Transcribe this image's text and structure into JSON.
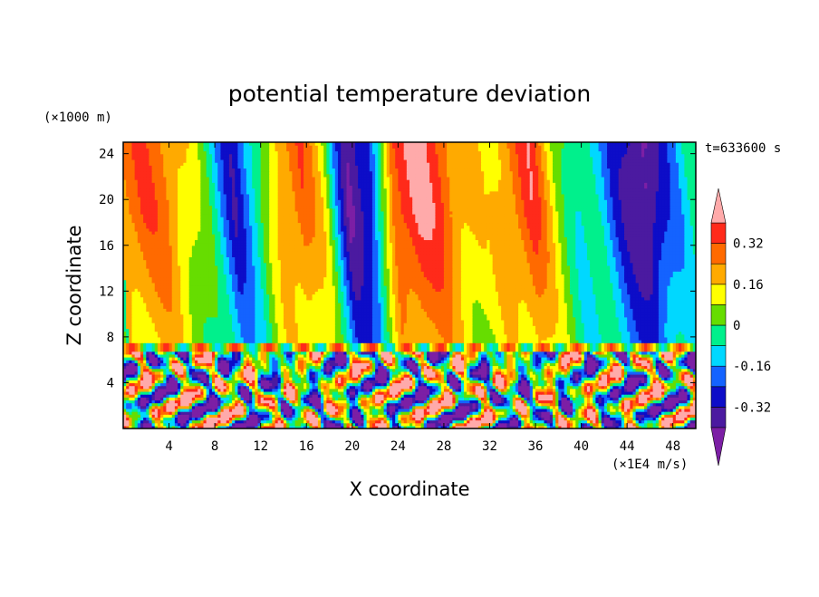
{
  "chart_data": {
    "type": "heatmap",
    "title": "potential temperature deviation",
    "xlabel": "X coordinate",
    "ylabel": "Z coordinate",
    "x_unit": "(×1E4 m/s)",
    "y_unit": "(×1000 m)",
    "time_label": "t=633600 s",
    "xlim": [
      0,
      50
    ],
    "ylim": [
      0,
      25
    ],
    "x_ticks": [
      4,
      8,
      12,
      16,
      20,
      24,
      28,
      32,
      36,
      40,
      44,
      48
    ],
    "y_ticks": [
      4,
      8,
      12,
      16,
      20,
      24
    ],
    "inversion_height": 7,
    "colorbar": {
      "levels": [
        -0.4,
        -0.32,
        -0.24,
        -0.16,
        -0.08,
        0,
        0.08,
        0.16,
        0.24,
        0.32,
        0.4
      ],
      "tick_labels": [
        "0.32",
        "0.16",
        "0",
        "-0.16",
        "-0.32"
      ],
      "tick_values": [
        0.32,
        0.16,
        0,
        -0.16,
        -0.32
      ],
      "colors": [
        "#7c1fa5",
        "#4b1aa0",
        "#0d0dc8",
        "#1463ff",
        "#00d8ff",
        "#00f08c",
        "#66dd00",
        "#ffff00",
        "#ffaa00",
        "#ff6a00",
        "#ff2a1a",
        "#ffaaaa"
      ],
      "extend": "both"
    },
    "upper_layer_columns": {
      "x": [
        0,
        2,
        4,
        6,
        8,
        10,
        12,
        14,
        16,
        18,
        20,
        22,
        24,
        26,
        28,
        30,
        32,
        34,
        36,
        38,
        40,
        42,
        44,
        46,
        48,
        50
      ],
      "theta": [
        0.26,
        0.3,
        0.28,
        0.14,
        -0.05,
        -0.3,
        -0.1,
        0.22,
        0.3,
        0.1,
        -0.4,
        -0.3,
        0.35,
        0.42,
        0.35,
        0.2,
        0.12,
        0.25,
        0.36,
        0.12,
        -0.08,
        -0.12,
        -0.3,
        -0.45,
        -0.2,
        -0.06
      ]
    }
  }
}
